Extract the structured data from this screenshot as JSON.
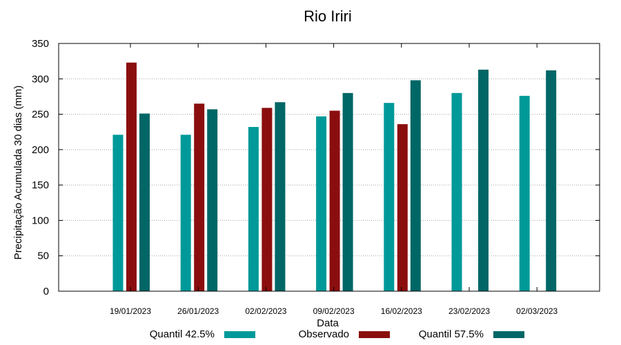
{
  "chart_data": {
    "type": "bar",
    "title": "Rio Iriri",
    "xlabel": "Data",
    "ylabel": "Precipitação Acumulada 30 dias (mm)",
    "categories": [
      "19/01/2023",
      "26/01/2023",
      "02/02/2023",
      "09/02/2023",
      "16/02/2023",
      "23/02/2023",
      "02/03/2023"
    ],
    "ylim": [
      0,
      350
    ],
    "yticks": [
      0,
      50,
      100,
      150,
      200,
      250,
      300,
      350
    ],
    "grid": true,
    "legend_position": "bottom",
    "series": [
      {
        "name": "Quantil 42.5%",
        "color": "#009999",
        "values": [
          221,
          221,
          232,
          247,
          266,
          280,
          276
        ]
      },
      {
        "name": "Observado",
        "color": "#8b0e0e",
        "values": [
          323,
          265,
          259,
          255,
          236,
          null,
          null
        ]
      },
      {
        "name": "Quantil 57.5%",
        "color": "#006666",
        "values": [
          251,
          257,
          267,
          280,
          298,
          313,
          312
        ]
      }
    ]
  }
}
